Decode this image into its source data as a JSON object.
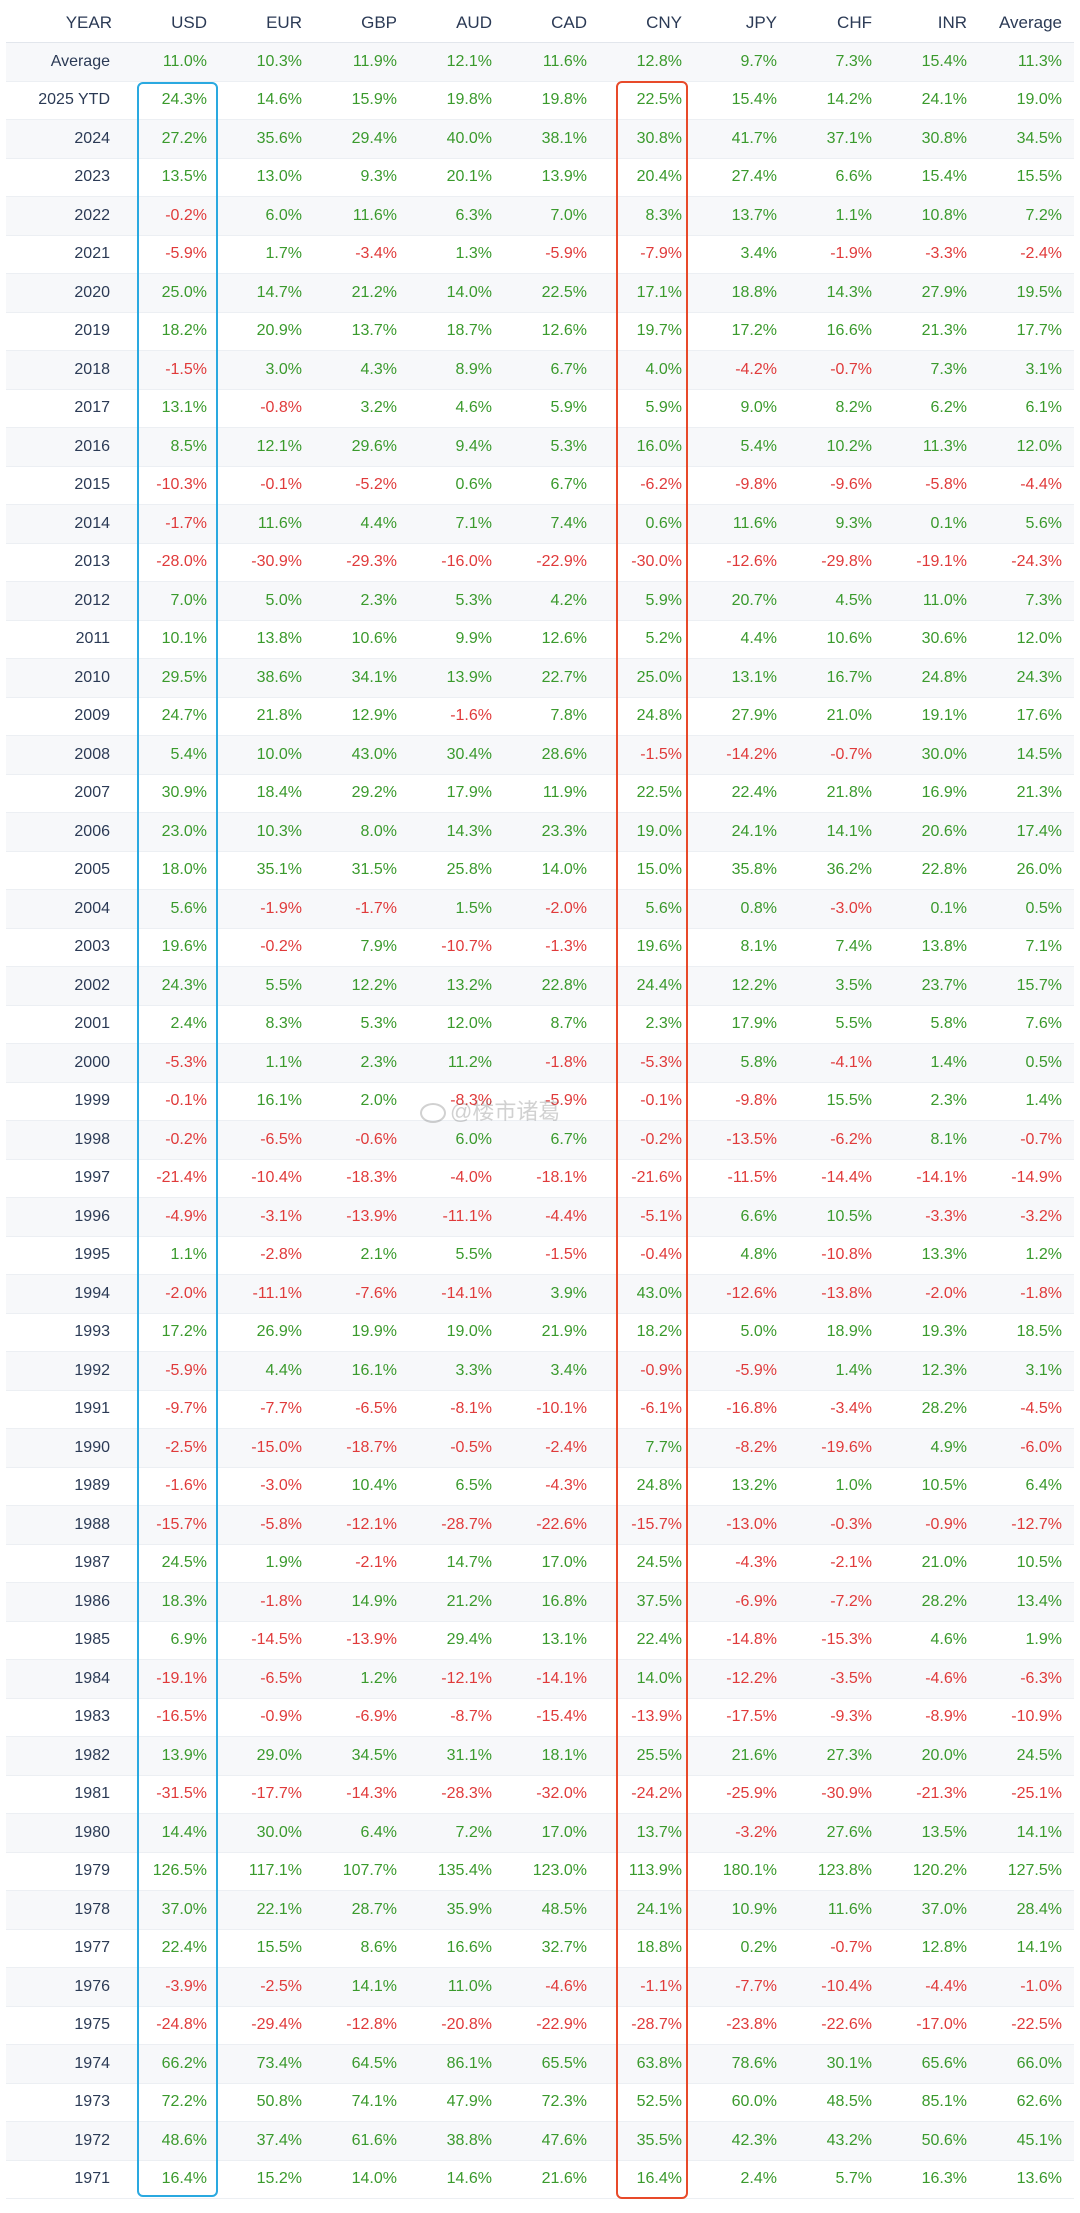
{
  "colors": {
    "positive": "#3a9a2c",
    "negative": "#e03a3a",
    "usd_highlight": "#2aa9e0",
    "cny_highlight": "#e84a2a"
  },
  "watermark": {
    "text": "@楼市诸葛",
    "icon": "weibo-icon"
  },
  "table": {
    "headers": [
      "YEAR",
      "USD",
      "EUR",
      "GBP",
      "AUD",
      "CAD",
      "CNY",
      "JPY",
      "CHF",
      "INR",
      "Average"
    ],
    "rows": [
      [
        "Average",
        "11.0%",
        "10.3%",
        "11.9%",
        "12.1%",
        "11.6%",
        "12.8%",
        "9.7%",
        "7.3%",
        "15.4%",
        "11.3%"
      ],
      [
        "2025 YTD",
        "24.3%",
        "14.6%",
        "15.9%",
        "19.8%",
        "19.8%",
        "22.5%",
        "15.4%",
        "14.2%",
        "24.1%",
        "19.0%"
      ],
      [
        "2024",
        "27.2%",
        "35.6%",
        "29.4%",
        "40.0%",
        "38.1%",
        "30.8%",
        "41.7%",
        "37.1%",
        "30.8%",
        "34.5%"
      ],
      [
        "2023",
        "13.5%",
        "13.0%",
        "9.3%",
        "20.1%",
        "13.9%",
        "20.4%",
        "27.4%",
        "6.6%",
        "15.4%",
        "15.5%"
      ],
      [
        "2022",
        "-0.2%",
        "6.0%",
        "11.6%",
        "6.3%",
        "7.0%",
        "8.3%",
        "13.7%",
        "1.1%",
        "10.8%",
        "7.2%"
      ],
      [
        "2021",
        "-5.9%",
        "1.7%",
        "-3.4%",
        "1.3%",
        "-5.9%",
        "-7.9%",
        "3.4%",
        "-1.9%",
        "-3.3%",
        "-2.4%"
      ],
      [
        "2020",
        "25.0%",
        "14.7%",
        "21.2%",
        "14.0%",
        "22.5%",
        "17.1%",
        "18.8%",
        "14.3%",
        "27.9%",
        "19.5%"
      ],
      [
        "2019",
        "18.2%",
        "20.9%",
        "13.7%",
        "18.7%",
        "12.6%",
        "19.7%",
        "17.2%",
        "16.6%",
        "21.3%",
        "17.7%"
      ],
      [
        "2018",
        "-1.5%",
        "3.0%",
        "4.3%",
        "8.9%",
        "6.7%",
        "4.0%",
        "-4.2%",
        "-0.7%",
        "7.3%",
        "3.1%"
      ],
      [
        "2017",
        "13.1%",
        "-0.8%",
        "3.2%",
        "4.6%",
        "5.9%",
        "5.9%",
        "9.0%",
        "8.2%",
        "6.2%",
        "6.1%"
      ],
      [
        "2016",
        "8.5%",
        "12.1%",
        "29.6%",
        "9.4%",
        "5.3%",
        "16.0%",
        "5.4%",
        "10.2%",
        "11.3%",
        "12.0%"
      ],
      [
        "2015",
        "-10.3%",
        "-0.1%",
        "-5.2%",
        "0.6%",
        "6.7%",
        "-6.2%",
        "-9.8%",
        "-9.6%",
        "-5.8%",
        "-4.4%"
      ],
      [
        "2014",
        "-1.7%",
        "11.6%",
        "4.4%",
        "7.1%",
        "7.4%",
        "0.6%",
        "11.6%",
        "9.3%",
        "0.1%",
        "5.6%"
      ],
      [
        "2013",
        "-28.0%",
        "-30.9%",
        "-29.3%",
        "-16.0%",
        "-22.9%",
        "-30.0%",
        "-12.6%",
        "-29.8%",
        "-19.1%",
        "-24.3%"
      ],
      [
        "2012",
        "7.0%",
        "5.0%",
        "2.3%",
        "5.3%",
        "4.2%",
        "5.9%",
        "20.7%",
        "4.5%",
        "11.0%",
        "7.3%"
      ],
      [
        "2011",
        "10.1%",
        "13.8%",
        "10.6%",
        "9.9%",
        "12.6%",
        "5.2%",
        "4.4%",
        "10.6%",
        "30.6%",
        "12.0%"
      ],
      [
        "2010",
        "29.5%",
        "38.6%",
        "34.1%",
        "13.9%",
        "22.7%",
        "25.0%",
        "13.1%",
        "16.7%",
        "24.8%",
        "24.3%"
      ],
      [
        "2009",
        "24.7%",
        "21.8%",
        "12.9%",
        "-1.6%",
        "7.8%",
        "24.8%",
        "27.9%",
        "21.0%",
        "19.1%",
        "17.6%"
      ],
      [
        "2008",
        "5.4%",
        "10.0%",
        "43.0%",
        "30.4%",
        "28.6%",
        "-1.5%",
        "-14.2%",
        "-0.7%",
        "30.0%",
        "14.5%"
      ],
      [
        "2007",
        "30.9%",
        "18.4%",
        "29.2%",
        "17.9%",
        "11.9%",
        "22.5%",
        "22.4%",
        "21.8%",
        "16.9%",
        "21.3%"
      ],
      [
        "2006",
        "23.0%",
        "10.3%",
        "8.0%",
        "14.3%",
        "23.3%",
        "19.0%",
        "24.1%",
        "14.1%",
        "20.6%",
        "17.4%"
      ],
      [
        "2005",
        "18.0%",
        "35.1%",
        "31.5%",
        "25.8%",
        "14.0%",
        "15.0%",
        "35.8%",
        "36.2%",
        "22.8%",
        "26.0%"
      ],
      [
        "2004",
        "5.6%",
        "-1.9%",
        "-1.7%",
        "1.5%",
        "-2.0%",
        "5.6%",
        "0.8%",
        "-3.0%",
        "0.1%",
        "0.5%"
      ],
      [
        "2003",
        "19.6%",
        "-0.2%",
        "7.9%",
        "-10.7%",
        "-1.3%",
        "19.6%",
        "8.1%",
        "7.4%",
        "13.8%",
        "7.1%"
      ],
      [
        "2002",
        "24.3%",
        "5.5%",
        "12.2%",
        "13.2%",
        "22.8%",
        "24.4%",
        "12.2%",
        "3.5%",
        "23.7%",
        "15.7%"
      ],
      [
        "2001",
        "2.4%",
        "8.3%",
        "5.3%",
        "12.0%",
        "8.7%",
        "2.3%",
        "17.9%",
        "5.5%",
        "5.8%",
        "7.6%"
      ],
      [
        "2000",
        "-5.3%",
        "1.1%",
        "2.3%",
        "11.2%",
        "-1.8%",
        "-5.3%",
        "5.8%",
        "-4.1%",
        "1.4%",
        "0.5%"
      ],
      [
        "1999",
        "-0.1%",
        "16.1%",
        "2.0%",
        "-8.3%",
        "-5.9%",
        "-0.1%",
        "-9.8%",
        "15.5%",
        "2.3%",
        "1.4%"
      ],
      [
        "1998",
        "-0.2%",
        "-6.5%",
        "-0.6%",
        "6.0%",
        "6.7%",
        "-0.2%",
        "-13.5%",
        "-6.2%",
        "8.1%",
        "-0.7%"
      ],
      [
        "1997",
        "-21.4%",
        "-10.4%",
        "-18.3%",
        "-4.0%",
        "-18.1%",
        "-21.6%",
        "-11.5%",
        "-14.4%",
        "-14.1%",
        "-14.9%"
      ],
      [
        "1996",
        "-4.9%",
        "-3.1%",
        "-13.9%",
        "-11.1%",
        "-4.4%",
        "-5.1%",
        "6.6%",
        "10.5%",
        "-3.3%",
        "-3.2%"
      ],
      [
        "1995",
        "1.1%",
        "-2.8%",
        "2.1%",
        "5.5%",
        "-1.5%",
        "-0.4%",
        "4.8%",
        "-10.8%",
        "13.3%",
        "1.2%"
      ],
      [
        "1994",
        "-2.0%",
        "-11.1%",
        "-7.6%",
        "-14.1%",
        "3.9%",
        "43.0%",
        "-12.6%",
        "-13.8%",
        "-2.0%",
        "-1.8%"
      ],
      [
        "1993",
        "17.2%",
        "26.9%",
        "19.9%",
        "19.0%",
        "21.9%",
        "18.2%",
        "5.0%",
        "18.9%",
        "19.3%",
        "18.5%"
      ],
      [
        "1992",
        "-5.9%",
        "4.4%",
        "16.1%",
        "3.3%",
        "3.4%",
        "-0.9%",
        "-5.9%",
        "1.4%",
        "12.3%",
        "3.1%"
      ],
      [
        "1991",
        "-9.7%",
        "-7.7%",
        "-6.5%",
        "-8.1%",
        "-10.1%",
        "-6.1%",
        "-16.8%",
        "-3.4%",
        "28.2%",
        "-4.5%"
      ],
      [
        "1990",
        "-2.5%",
        "-15.0%",
        "-18.7%",
        "-0.5%",
        "-2.4%",
        "7.7%",
        "-8.2%",
        "-19.6%",
        "4.9%",
        "-6.0%"
      ],
      [
        "1989",
        "-1.6%",
        "-3.0%",
        "10.4%",
        "6.5%",
        "-4.3%",
        "24.8%",
        "13.2%",
        "1.0%",
        "10.5%",
        "6.4%"
      ],
      [
        "1988",
        "-15.7%",
        "-5.8%",
        "-12.1%",
        "-28.7%",
        "-22.6%",
        "-15.7%",
        "-13.0%",
        "-0.3%",
        "-0.9%",
        "-12.7%"
      ],
      [
        "1987",
        "24.5%",
        "1.9%",
        "-2.1%",
        "14.7%",
        "17.0%",
        "24.5%",
        "-4.3%",
        "-2.1%",
        "21.0%",
        "10.5%"
      ],
      [
        "1986",
        "18.3%",
        "-1.8%",
        "14.9%",
        "21.2%",
        "16.8%",
        "37.5%",
        "-6.9%",
        "-7.2%",
        "28.2%",
        "13.4%"
      ],
      [
        "1985",
        "6.9%",
        "-14.5%",
        "-13.9%",
        "29.4%",
        "13.1%",
        "22.4%",
        "-14.8%",
        "-15.3%",
        "4.6%",
        "1.9%"
      ],
      [
        "1984",
        "-19.1%",
        "-6.5%",
        "1.2%",
        "-12.1%",
        "-14.1%",
        "14.0%",
        "-12.2%",
        "-3.5%",
        "-4.6%",
        "-6.3%"
      ],
      [
        "1983",
        "-16.5%",
        "-0.9%",
        "-6.9%",
        "-8.7%",
        "-15.4%",
        "-13.9%",
        "-17.5%",
        "-9.3%",
        "-8.9%",
        "-10.9%"
      ],
      [
        "1982",
        "13.9%",
        "29.0%",
        "34.5%",
        "31.1%",
        "18.1%",
        "25.5%",
        "21.6%",
        "27.3%",
        "20.0%",
        "24.5%"
      ],
      [
        "1981",
        "-31.5%",
        "-17.7%",
        "-14.3%",
        "-28.3%",
        "-32.0%",
        "-24.2%",
        "-25.9%",
        "-30.9%",
        "-21.3%",
        "-25.1%"
      ],
      [
        "1980",
        "14.4%",
        "30.0%",
        "6.4%",
        "7.2%",
        "17.0%",
        "13.7%",
        "-3.2%",
        "27.6%",
        "13.5%",
        "14.1%"
      ],
      [
        "1979",
        "126.5%",
        "117.1%",
        "107.7%",
        "135.4%",
        "123.0%",
        "113.9%",
        "180.1%",
        "123.8%",
        "120.2%",
        "127.5%"
      ],
      [
        "1978",
        "37.0%",
        "22.1%",
        "28.7%",
        "35.9%",
        "48.5%",
        "24.1%",
        "10.9%",
        "11.6%",
        "37.0%",
        "28.4%"
      ],
      [
        "1977",
        "22.4%",
        "15.5%",
        "8.6%",
        "16.6%",
        "32.7%",
        "18.8%",
        "0.2%",
        "-0.7%",
        "12.8%",
        "14.1%"
      ],
      [
        "1976",
        "-3.9%",
        "-2.5%",
        "14.1%",
        "11.0%",
        "-4.6%",
        "-1.1%",
        "-7.7%",
        "-10.4%",
        "-4.4%",
        "-1.0%"
      ],
      [
        "1975",
        "-24.8%",
        "-29.4%",
        "-12.8%",
        "-20.8%",
        "-22.9%",
        "-28.7%",
        "-23.8%",
        "-22.6%",
        "-17.0%",
        "-22.5%"
      ],
      [
        "1974",
        "66.2%",
        "73.4%",
        "64.5%",
        "86.1%",
        "65.5%",
        "63.8%",
        "78.6%",
        "30.1%",
        "65.6%",
        "66.0%"
      ],
      [
        "1973",
        "72.2%",
        "50.8%",
        "74.1%",
        "47.9%",
        "72.3%",
        "52.5%",
        "60.0%",
        "48.5%",
        "85.1%",
        "62.6%"
      ],
      [
        "1972",
        "48.6%",
        "37.4%",
        "61.6%",
        "38.8%",
        "47.6%",
        "35.5%",
        "42.3%",
        "43.2%",
        "50.6%",
        "45.1%"
      ],
      [
        "1971",
        "16.4%",
        "15.2%",
        "14.0%",
        "14.6%",
        "21.6%",
        "16.4%",
        "2.4%",
        "5.7%",
        "16.3%",
        "13.6%"
      ]
    ]
  }
}
